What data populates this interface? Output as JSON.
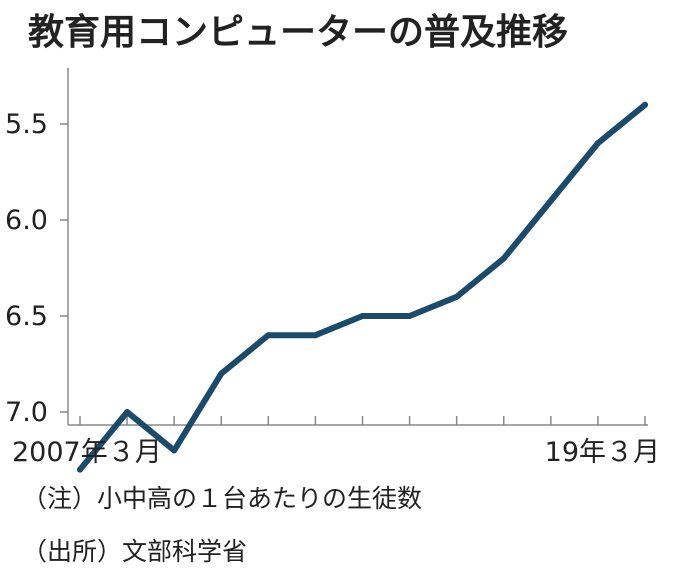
{
  "chart_data": {
    "type": "line",
    "title": "教育用コンピューターの普及推移",
    "xlabel": "",
    "ylabel": "",
    "x_tick_labels": [
      "2007年３月",
      "19年３月"
    ],
    "x": [
      0,
      1,
      2,
      3,
      4,
      5,
      6,
      7,
      8,
      9,
      10,
      11,
      12
    ],
    "values": [
      7.3,
      7.0,
      7.2,
      6.8,
      6.6,
      6.6,
      6.5,
      6.5,
      6.4,
      6.2,
      5.9,
      5.6,
      5.4
    ],
    "y_ticks": [
      "5.5",
      "6.0",
      "6.5",
      "7.0"
    ],
    "ylim": [
      5.0,
      7.5
    ],
    "y_inverted": true,
    "line_color": "#1b4a6b",
    "grid": false,
    "notes": [
      "（注）小中高の１台あたりの生徒数",
      "（出所）文部科学省"
    ]
  }
}
